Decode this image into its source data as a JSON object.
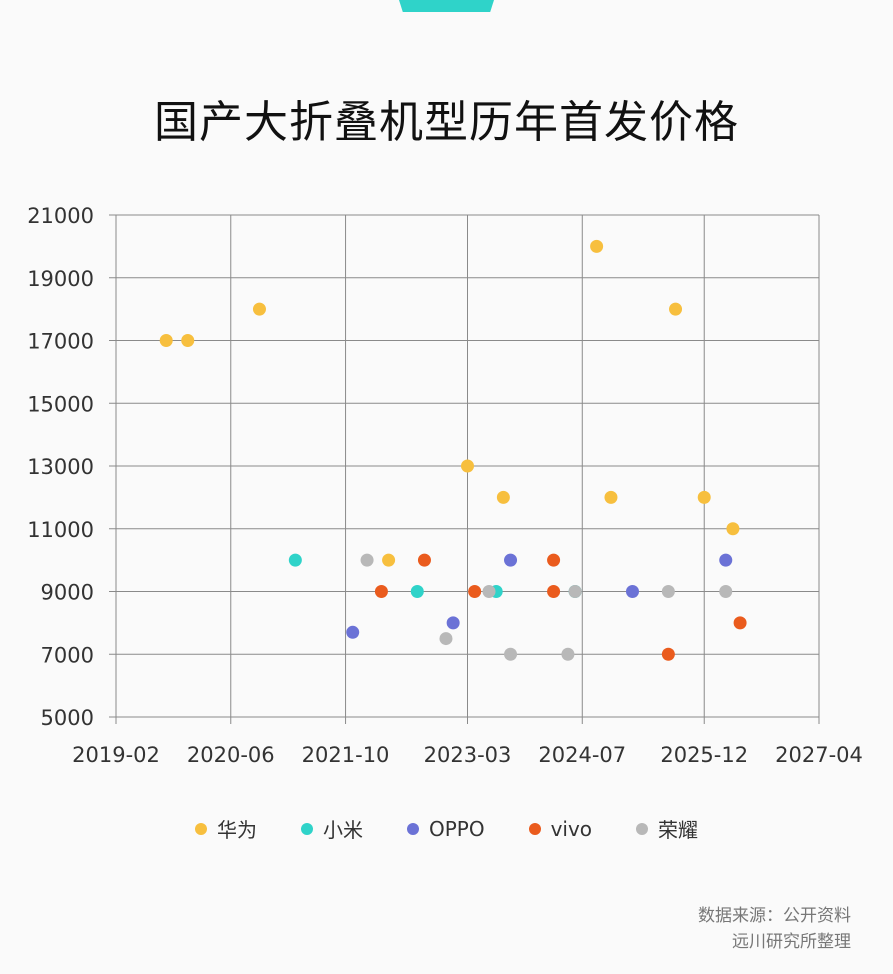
{
  "title": "国产大折叠机型历年首发价格",
  "source_lines": [
    "数据来源：公开资料",
    "远川研究所整理"
  ],
  "chart_data": {
    "type": "scatter",
    "title": "国产大折叠机型历年首发价格",
    "xlabel": "",
    "ylabel": "",
    "x_ticks": [
      "2019-02",
      "2020-06",
      "2021-10",
      "2023-03",
      "2024-07",
      "2025-12",
      "2027-04"
    ],
    "x_range": [
      "2019-02",
      "2027-04"
    ],
    "y_ticks": [
      5000,
      7000,
      9000,
      11000,
      13000,
      15000,
      17000,
      19000,
      21000
    ],
    "ylim": [
      5000,
      21000
    ],
    "grid": true,
    "legend_position": "bottom",
    "series": [
      {
        "name": "华为",
        "color": "#f7bf3e",
        "points": [
          {
            "x": "2019-09",
            "y": 17000
          },
          {
            "x": "2019-12",
            "y": 17000
          },
          {
            "x": "2020-10",
            "y": 18000
          },
          {
            "x": "2022-04",
            "y": 10000
          },
          {
            "x": "2023-03",
            "y": 13000
          },
          {
            "x": "2023-08",
            "y": 12000
          },
          {
            "x": "2024-09",
            "y": 20000
          },
          {
            "x": "2024-11",
            "y": 12000
          },
          {
            "x": "2025-08",
            "y": 18000
          },
          {
            "x": "2025-12",
            "y": 12000
          },
          {
            "x": "2026-04",
            "y": 11000
          }
        ]
      },
      {
        "name": "小米",
        "color": "#2fd3c9",
        "points": [
          {
            "x": "2021-03",
            "y": 10000
          },
          {
            "x": "2022-08",
            "y": 9000
          },
          {
            "x": "2023-07",
            "y": 9000
          },
          {
            "x": "2024-06",
            "y": 9000
          }
        ]
      },
      {
        "name": "OPPO",
        "color": "#6b72d6",
        "points": [
          {
            "x": "2021-11",
            "y": 7700
          },
          {
            "x": "2023-01",
            "y": 8000
          },
          {
            "x": "2023-09",
            "y": 10000
          },
          {
            "x": "2025-02",
            "y": 9000
          },
          {
            "x": "2026-03",
            "y": 10000
          }
        ]
      },
      {
        "name": "vivo",
        "color": "#ea5b1d",
        "points": [
          {
            "x": "2022-03",
            "y": 9000
          },
          {
            "x": "2022-09",
            "y": 10000
          },
          {
            "x": "2023-04",
            "y": 9000
          },
          {
            "x": "2024-03",
            "y": 10000
          },
          {
            "x": "2024-03",
            "y": 9000
          },
          {
            "x": "2025-07",
            "y": 7000
          },
          {
            "x": "2026-05",
            "y": 8000
          }
        ]
      },
      {
        "name": "荣耀",
        "color": "#b8b8b8",
        "points": [
          {
            "x": "2022-01",
            "y": 10000
          },
          {
            "x": "2022-12",
            "y": 7500
          },
          {
            "x": "2023-06",
            "y": 9000
          },
          {
            "x": "2023-09",
            "y": 7000
          },
          {
            "x": "2024-05",
            "y": 7000
          },
          {
            "x": "2024-06",
            "y": 9000
          },
          {
            "x": "2025-07",
            "y": 9000
          },
          {
            "x": "2026-03",
            "y": 9000
          }
        ]
      }
    ]
  }
}
